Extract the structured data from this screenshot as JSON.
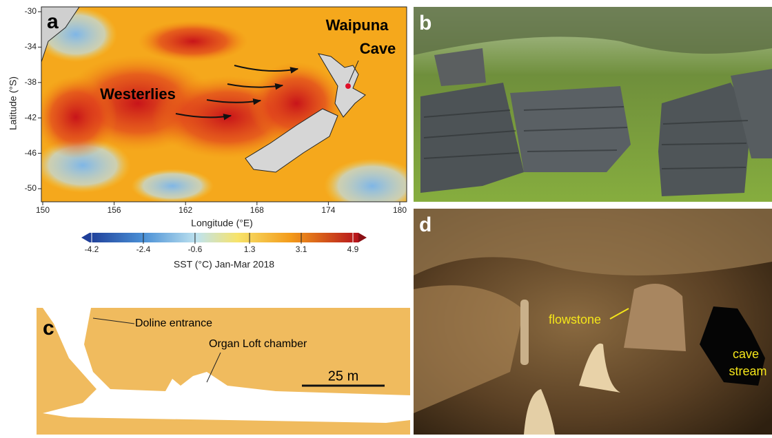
{
  "panel_a": {
    "label": "a",
    "cave_name": [
      "Waipuna",
      "Cave"
    ],
    "wind_label": "Westerlies",
    "x_axis_label": "Longitude (°E)",
    "y_axis_label": "Latitude (°S)",
    "xticks": [
      150,
      156,
      162,
      168,
      174,
      180
    ],
    "yticks": [
      -30,
      -34,
      -38,
      -42,
      -46,
      -50
    ],
    "colorbar": {
      "ticks": [
        -4.2,
        -2.4,
        -0.6,
        1.3,
        3.1,
        4.9
      ],
      "label": "SST (°C)  Jan-Mar 2018"
    }
  },
  "panel_b": {
    "label": "b"
  },
  "panel_c": {
    "label": "c",
    "annotations": [
      "Doline entrance",
      "Organ Loft chamber"
    ],
    "scale_bar": "25 m"
  },
  "panel_d": {
    "label": "d",
    "annotations": [
      "flowstone",
      "cave",
      "stream"
    ]
  }
}
